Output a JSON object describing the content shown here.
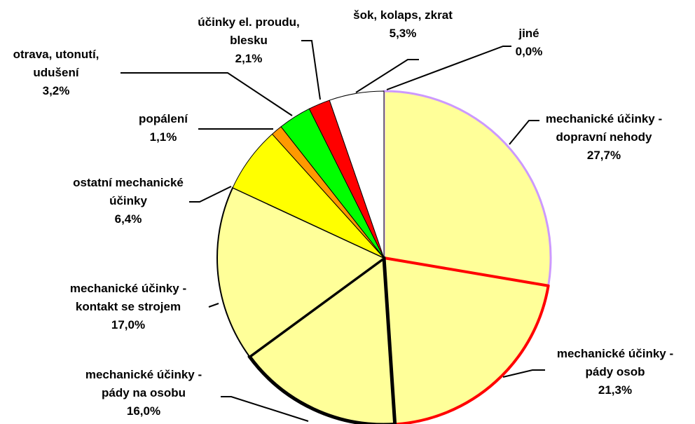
{
  "chart_data": {
    "type": "pie",
    "categories": [
      "mechanické účinky -\ndopravní nehody",
      "mechanické účinky -\npády osob",
      "mechanické účinky -\npády na osobu",
      "mechanické účinky -\nkontakt se strojem",
      "ostatní mechanické\núčinky",
      "popálení",
      "otrava, utonutí,\nudušení",
      "účinky el. proudu,\nblesku",
      "šok, kolaps, zkrat",
      "jiné"
    ],
    "values": [
      27.7,
      21.3,
      16.0,
      17.0,
      6.4,
      1.1,
      3.2,
      2.1,
      5.3,
      0.0
    ],
    "value_labels": [
      "27,7%",
      "21,3%",
      "16,0%",
      "17,0%",
      "6,4%",
      "1,1%",
      "3,2%",
      "2,1%",
      "5,3%",
      "0,0%"
    ],
    "colors": [
      "#ffff99",
      "#ffff99",
      "#ffff99",
      "#ffff99",
      "#ffff00",
      "#ff9900",
      "#00ff00",
      "#ff0000",
      "#ffffff",
      "#ffffff"
    ],
    "border_colors": [
      "#cc99ff",
      "#ff0000",
      "#000000",
      "#000000",
      "#000000",
      "#000000",
      "#000000",
      "#000000",
      "#000000",
      "#000000"
    ]
  }
}
